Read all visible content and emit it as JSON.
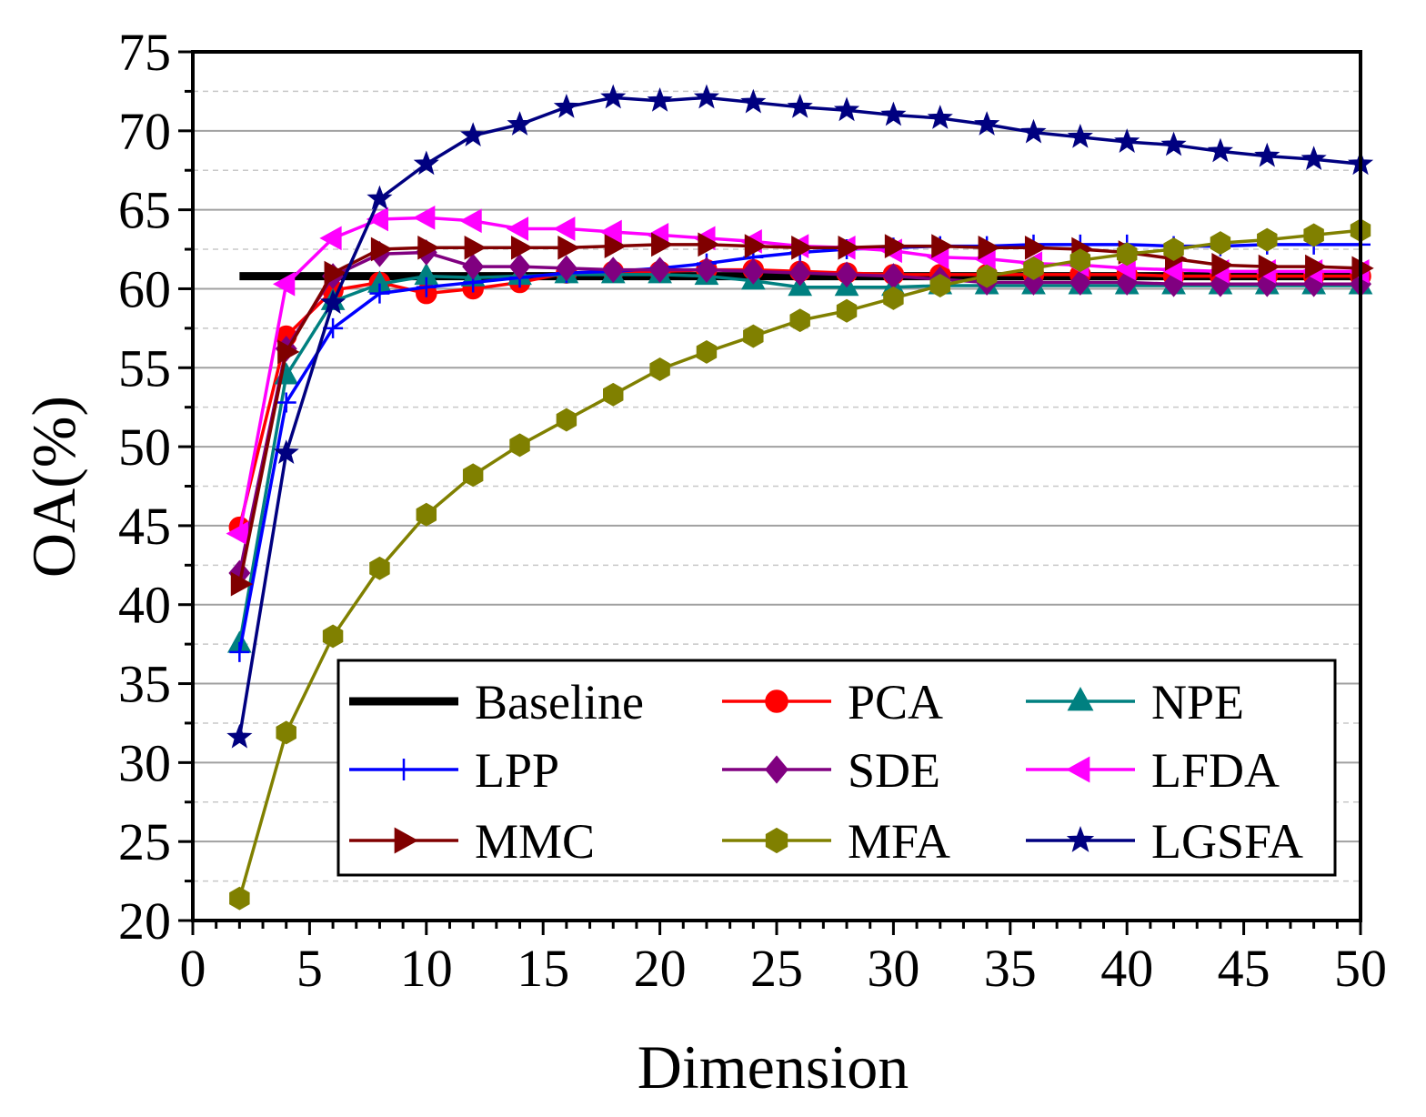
{
  "chart_data": {
    "type": "line",
    "title": "",
    "xlabel": "Dimension",
    "ylabel": "OA(%)",
    "xlim": [
      0,
      50
    ],
    "ylim": [
      20,
      75
    ],
    "xticks": [
      "0",
      "5",
      "10",
      "15",
      "20",
      "25",
      "30",
      "35",
      "40",
      "45",
      "50"
    ],
    "yticks": [
      "20",
      "25",
      "30",
      "35",
      "40",
      "45",
      "50",
      "55",
      "60",
      "65",
      "70",
      "75"
    ],
    "grid": true,
    "legend_position": "bottom-right inside",
    "x": [
      2,
      4,
      6,
      8,
      10,
      12,
      14,
      16,
      18,
      20,
      22,
      24,
      26,
      28,
      30,
      32,
      34,
      36,
      38,
      40,
      42,
      44,
      46,
      48,
      50
    ],
    "series": [
      {
        "name": "Baseline",
        "color": "#000000",
        "marker": "none",
        "values": [
          60.8,
          60.8,
          60.8,
          60.8,
          60.8,
          60.8,
          60.8,
          60.8,
          60.8,
          60.8,
          60.8,
          60.8,
          60.8,
          60.8,
          60.8,
          60.8,
          60.8,
          60.8,
          60.8,
          60.8,
          60.8,
          60.8,
          60.8,
          60.8,
          60.8
        ]
      },
      {
        "name": "PCA",
        "color": "#ff0000",
        "marker": "circle",
        "values": [
          44.9,
          57.0,
          59.9,
          60.4,
          59.7,
          60.0,
          60.4,
          61.0,
          61.1,
          61.1,
          61.2,
          61.2,
          61.1,
          61.0,
          60.9,
          60.9,
          60.9,
          60.9,
          60.9,
          60.9,
          60.8,
          60.8,
          60.8,
          60.8,
          60.8
        ]
      },
      {
        "name": "NPE",
        "color": "#008080",
        "marker": "triangle-up",
        "values": [
          37.5,
          54.5,
          59.2,
          60.3,
          60.8,
          60.7,
          60.8,
          60.9,
          60.9,
          60.9,
          60.8,
          60.5,
          60.1,
          60.1,
          60.1,
          60.2,
          60.2,
          60.2,
          60.2,
          60.2,
          60.2,
          60.2,
          60.2,
          60.2,
          60.2
        ]
      },
      {
        "name": "LPP",
        "color": "#0000ff",
        "marker": "plus",
        "values": [
          37.0,
          52.8,
          57.5,
          59.7,
          60.1,
          60.4,
          60.7,
          61.0,
          61.1,
          61.3,
          61.6,
          62.0,
          62.3,
          62.5,
          62.6,
          62.7,
          62.7,
          62.8,
          62.8,
          62.8,
          62.7,
          62.7,
          62.8,
          62.8,
          62.8
        ]
      },
      {
        "name": "SDE",
        "color": "#800080",
        "marker": "diamond",
        "values": [
          42.0,
          56.2,
          60.8,
          62.2,
          62.3,
          61.4,
          61.4,
          61.3,
          61.2,
          61.2,
          61.2,
          61.1,
          61.0,
          60.9,
          60.8,
          60.6,
          60.4,
          60.4,
          60.4,
          60.4,
          60.3,
          60.3,
          60.3,
          60.3,
          60.3
        ]
      },
      {
        "name": "LFDA",
        "color": "#ff00ff",
        "marker": "triangle-left",
        "values": [
          44.5,
          60.3,
          63.2,
          64.4,
          64.5,
          64.3,
          63.8,
          63.8,
          63.6,
          63.4,
          63.2,
          63.0,
          62.7,
          62.6,
          62.4,
          62.0,
          61.9,
          61.6,
          61.5,
          61.3,
          61.2,
          61.1,
          61.1,
          61.1,
          61.1
        ]
      },
      {
        "name": "MMC",
        "color": "#800000",
        "marker": "triangle-right",
        "values": [
          41.3,
          56.0,
          61.0,
          62.5,
          62.6,
          62.6,
          62.6,
          62.6,
          62.7,
          62.8,
          62.8,
          62.7,
          62.6,
          62.6,
          62.7,
          62.7,
          62.6,
          62.6,
          62.5,
          62.3,
          61.9,
          61.5,
          61.4,
          61.4,
          61.3
        ]
      },
      {
        "name": "MFA",
        "color": "#808000",
        "marker": "hexagon",
        "values": [
          21.4,
          31.9,
          38.0,
          42.3,
          45.7,
          48.2,
          50.1,
          51.7,
          53.3,
          54.9,
          56.0,
          57.0,
          58.0,
          58.6,
          59.4,
          60.2,
          60.8,
          61.3,
          61.8,
          62.2,
          62.5,
          62.9,
          63.1,
          63.4,
          63.7
        ]
      },
      {
        "name": "LGSFA",
        "color": "#000080",
        "marker": "star",
        "values": [
          31.6,
          49.6,
          59.1,
          65.7,
          67.9,
          69.7,
          70.4,
          71.5,
          72.1,
          71.9,
          72.1,
          71.8,
          71.5,
          71.3,
          71.0,
          70.8,
          70.4,
          69.9,
          69.6,
          69.3,
          69.1,
          68.7,
          68.4,
          68.2,
          67.9
        ]
      }
    ]
  }
}
